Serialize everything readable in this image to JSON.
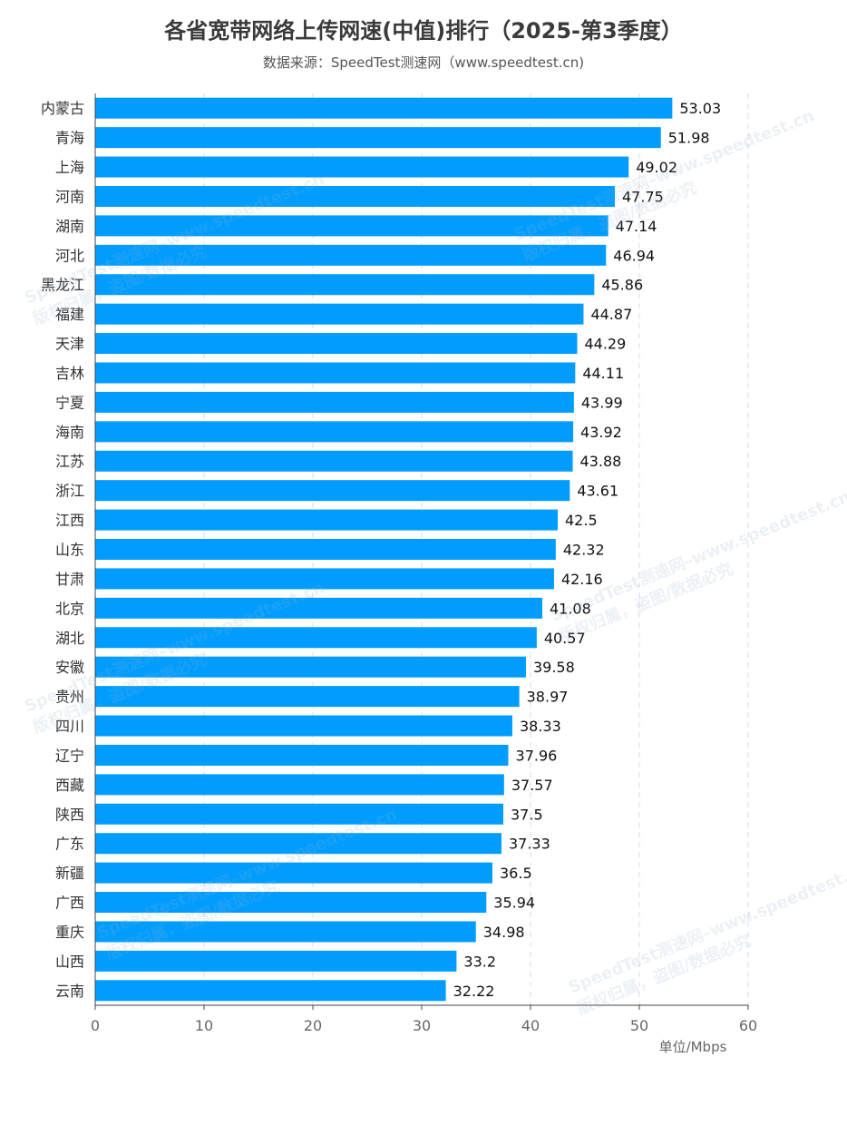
{
  "title": "各省宽带网络上传网速(中值)排行（2025-第3季度）",
  "subtitle": "数据来源：SpeedTest测速网（www.speedtest.cn)",
  "watermark": "SpeedTest测速网–www.speedtest.cn\n版权归属，盗图/数据必究",
  "chart_data": {
    "type": "bar",
    "orientation": "horizontal",
    "title": "各省宽带网络上传网速(中值)排行（2025-第3季度）",
    "subtitle": "数据来源：SpeedTest测速网（www.speedtest.cn)",
    "xlabel": "单位/Mbps",
    "xlim": [
      0,
      60
    ],
    "xticks": [
      0,
      10,
      20,
      30,
      40,
      50,
      60
    ],
    "grid": "vertical dashed",
    "bar_color": "#009dff",
    "categories": [
      "内蒙古",
      "青海",
      "上海",
      "河南",
      "湖南",
      "河北",
      "黑龙江",
      "福建",
      "天津",
      "吉林",
      "宁夏",
      "海南",
      "江苏",
      "浙江",
      "江西",
      "山东",
      "甘肃",
      "北京",
      "湖北",
      "安徽",
      "贵州",
      "四川",
      "辽宁",
      "西藏",
      "陕西",
      "广东",
      "新疆",
      "广西",
      "重庆",
      "山西",
      "云南"
    ],
    "values": [
      53.03,
      51.98,
      49.02,
      47.75,
      47.14,
      46.94,
      45.86,
      44.87,
      44.29,
      44.11,
      43.99,
      43.92,
      43.88,
      43.61,
      42.5,
      42.32,
      42.16,
      41.08,
      40.57,
      39.58,
      38.97,
      38.33,
      37.96,
      37.57,
      37.5,
      37.33,
      36.5,
      35.94,
      34.98,
      33.2,
      32.22
    ]
  }
}
